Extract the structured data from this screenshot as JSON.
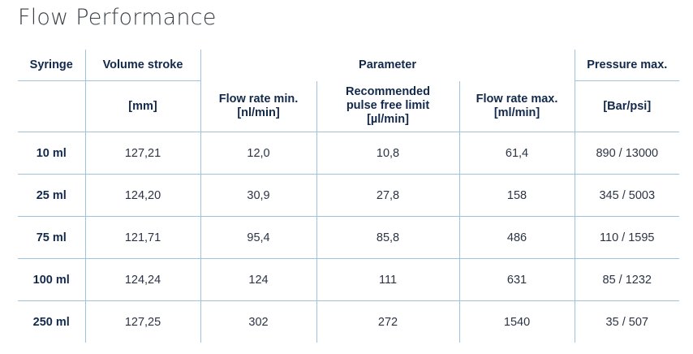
{
  "title": "Flow Performance",
  "header": {
    "syringe": "Syringe",
    "volume_stroke": "Volume stroke",
    "parameter": "Parameter",
    "pressure_max": "Pressure max.",
    "unit_mm": "[mm]",
    "flow_min": "Flow rate min.",
    "flow_min_unit": "[nl/min]",
    "pulse_line1": "Recommended",
    "pulse_line2": "pulse free limit",
    "pulse_unit": "[µl/min]",
    "flow_max": "Flow rate max.",
    "flow_max_unit": "[ml/min]",
    "pressure_unit": "[Bar/psi]"
  },
  "rows": [
    {
      "syringe": "10 ml",
      "stroke": "127,21",
      "flow_min": "12,0",
      "pulse": "10,8",
      "flow_max": "61,4",
      "pressure": "890 / 13000"
    },
    {
      "syringe": "25 ml",
      "stroke": "124,20",
      "flow_min": "30,9",
      "pulse": "27,8",
      "flow_max": "158",
      "pressure": "345 / 5003"
    },
    {
      "syringe": "75 ml",
      "stroke": "121,71",
      "flow_min": "95,4",
      "pulse": "85,8",
      "flow_max": "486",
      "pressure": "110 / 1595"
    },
    {
      "syringe": "100 ml",
      "stroke": "124,24",
      "flow_min": "124",
      "pulse": "111",
      "flow_max": "631",
      "pressure": "85 / 1232"
    },
    {
      "syringe": "250 ml",
      "stroke": "127,25",
      "flow_min": "302",
      "pulse": "272",
      "flow_max": "1540",
      "pressure": "35 / 507"
    }
  ]
}
